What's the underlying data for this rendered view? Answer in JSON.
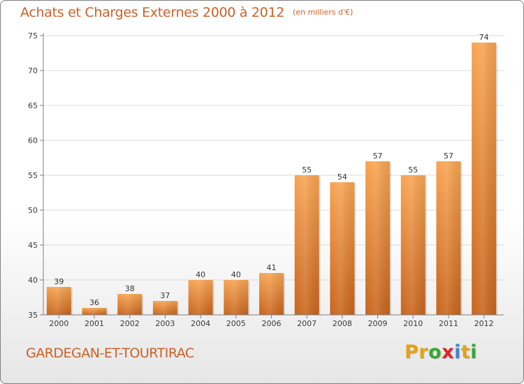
{
  "header": {
    "title": "Achats et Charges Externes 2000 à 2012",
    "unit": "(en milliers d'€)"
  },
  "commune": "GARDEGAN-ET-TOURTIRAC",
  "logo": {
    "text": "Proxiti",
    "colors": [
      "#e3a21a",
      "#e3a21a",
      "#3aa635",
      "#e02424",
      "#3a86cf",
      "#e3a21a",
      "#3aa635"
    ]
  },
  "colors": {
    "accent": "#c8622a",
    "bar_top": "#f7a452",
    "bar_bottom": "#c8641c",
    "grid": "#d9d9d9",
    "axis": "#7f7f7f"
  },
  "chart_data": {
    "type": "bar",
    "title": "Achats et Charges Externes 2000 à 2012",
    "subtitle": "(en milliers d'€)",
    "categories": [
      "2000",
      "2001",
      "2002",
      "2003",
      "2004",
      "2005",
      "2006",
      "2007",
      "2008",
      "2009",
      "2010",
      "2011",
      "2012"
    ],
    "values": [
      39,
      36,
      38,
      37,
      40,
      40,
      41,
      55,
      54,
      57,
      55,
      57,
      74
    ],
    "data_labels": [
      "39",
      "36",
      "38",
      "37",
      "40",
      "40",
      "41",
      "55",
      "54",
      "57",
      "55",
      "57",
      "74"
    ],
    "xlabel": "",
    "ylabel": "",
    "ylim": [
      35,
      75
    ],
    "yticks": [
      35,
      40,
      45,
      50,
      55,
      60,
      65,
      70,
      75
    ],
    "ytick_labels": [
      "35",
      "40",
      "45",
      "50",
      "55",
      "60",
      "65",
      "70",
      "75"
    ],
    "grid": true,
    "legend": "none"
  }
}
